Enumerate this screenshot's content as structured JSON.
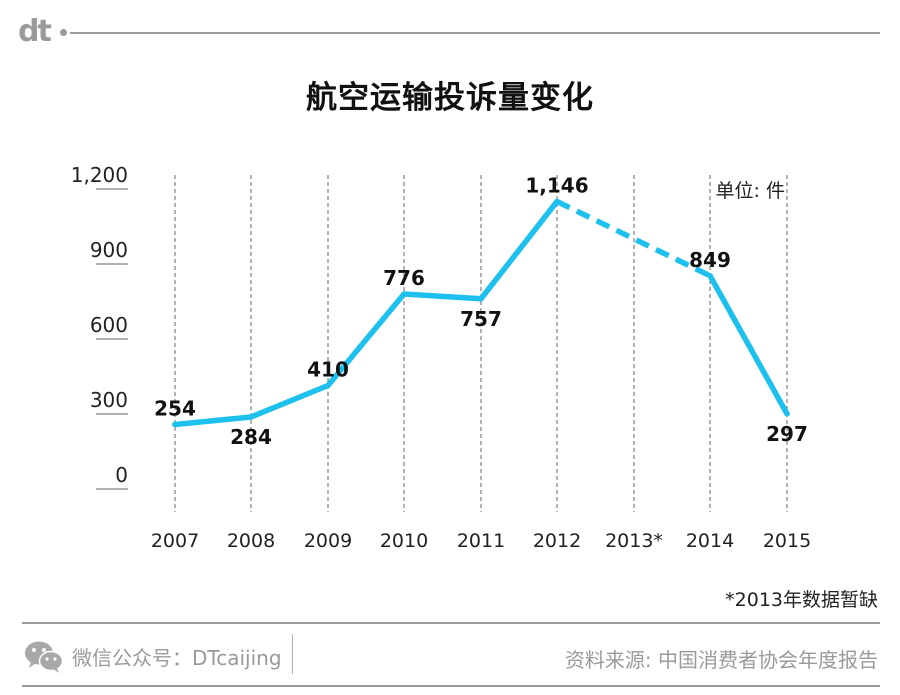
{
  "header": {
    "logo": "dt"
  },
  "chart_data": {
    "type": "line",
    "title": "航空运输投诉量变化",
    "unit_label": "单位: 件",
    "categories": [
      "2007",
      "2008",
      "2009",
      "2010",
      "2011",
      "2012",
      "2013*",
      "2014",
      "2015"
    ],
    "values": [
      254,
      284,
      410,
      776,
      757,
      1146,
      null,
      849,
      297
    ],
    "value_labels": [
      "254",
      "284",
      "410",
      "776",
      "757",
      "1,146",
      "",
      "849",
      "297"
    ],
    "yticks": [
      0,
      300,
      600,
      900,
      1200
    ],
    "ytick_labels": [
      "0",
      "300",
      "600",
      "900",
      "1,200"
    ],
    "ylim": [
      0,
      1200
    ],
    "gap_style": "dashed",
    "colors": {
      "line": "#1ec0ee",
      "grid": "#666666",
      "text": "#222222"
    }
  },
  "note": "*2013年数据暂缺",
  "footer": {
    "wechat": "微信公众号：DTcaijing",
    "source": "资料来源: 中国消费者协会年度报告"
  }
}
